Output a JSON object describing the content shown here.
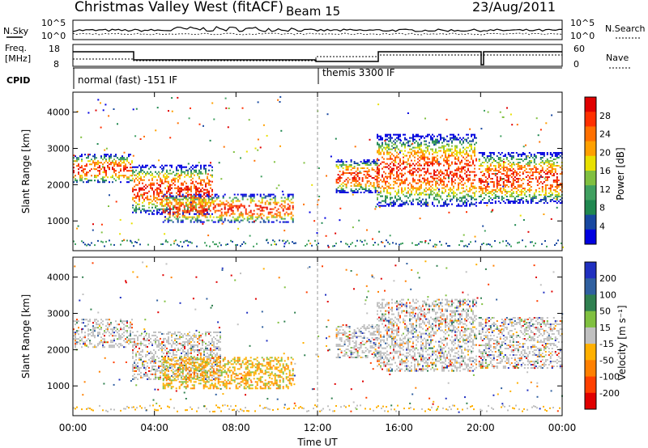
{
  "header": {
    "station": "Christmas Valley West (fitACF)",
    "beam": "Beam 15",
    "date": "23/Aug/2011"
  },
  "meta_panels": {
    "nsky_label": "N.Sky",
    "nsearch_label": "N.Search",
    "noise_ticks": [
      "10^5",
      "10^0"
    ],
    "freq_label": "Freq.",
    "freq_unit": "[MHz]",
    "freq_ticks": [
      "18",
      "8"
    ],
    "nave_label": "Nave",
    "nave_ticks": [
      "60",
      "0"
    ],
    "cpid_label": "CPID",
    "cpid_segments": [
      {
        "label": "normal (fast) -151 IF",
        "start_h": 0,
        "end_h": 12
      },
      {
        "label": "themis 3300 IF",
        "start_h": 12,
        "end_h": 24
      }
    ]
  },
  "chart_data": [
    {
      "type": "heatmap",
      "id": "power",
      "ylabel": "Slant Range [km]",
      "yticks": [
        1000,
        2000,
        3000,
        4000
      ],
      "ylim": [
        180,
        4550
      ],
      "xlim": [
        0,
        24
      ],
      "colorbar": {
        "label": "Power [dB]",
        "ticks": [
          "28",
          "24",
          "20",
          "16",
          "12",
          "8",
          "4"
        ],
        "colors": [
          "#e00000",
          "#ff3000",
          "#ff7000",
          "#ffa000",
          "#e8e000",
          "#80c040",
          "#40a060",
          "#208850",
          "#1848a0",
          "#0000e0"
        ]
      },
      "echo_regions": [
        {
          "t0": 0.0,
          "t1": 2.9,
          "r_top": 2850,
          "r_bot": 2050
        },
        {
          "t0": 2.9,
          "t1": 6.8,
          "r_top": 2550,
          "r_bot": 1200
        },
        {
          "t0": 4.4,
          "t1": 10.8,
          "r_top": 1750,
          "r_bot": 950
        },
        {
          "t0": 12.9,
          "t1": 15.0,
          "r_top": 2700,
          "r_bot": 1800
        },
        {
          "t0": 14.9,
          "t1": 19.8,
          "r_top": 3400,
          "r_bot": 1400
        },
        {
          "t0": 19.9,
          "t1": 24.0,
          "r_top": 2900,
          "r_bot": 1500
        }
      ]
    },
    {
      "type": "heatmap",
      "id": "velocity",
      "ylabel": "Slant Range [km]",
      "yticks": [
        1000,
        2000,
        3000,
        4000
      ],
      "ylim": [
        180,
        4550
      ],
      "xlim": [
        0,
        24
      ],
      "colorbar": {
        "label": "Velocity [m s⁻¹]",
        "ticks": [
          "200",
          "100",
          "50",
          "15",
          "-15",
          "-50",
          "-100",
          "-200"
        ],
        "colors": [
          "#2030c0",
          "#3060a0",
          "#308050",
          "#80c040",
          "#c0c0c0",
          "#ffb000",
          "#ff8000",
          "#ff4000",
          "#e00000"
        ]
      },
      "echo_regions": [
        {
          "t0": 0.0,
          "t1": 2.9,
          "r_top": 2850,
          "r_bot": 2050
        },
        {
          "t0": 2.9,
          "t1": 7.2,
          "r_top": 2500,
          "r_bot": 1200
        },
        {
          "t0": 4.4,
          "t1": 10.8,
          "r_top": 1800,
          "r_bot": 950
        },
        {
          "t0": 12.9,
          "t1": 15.0,
          "r_top": 2700,
          "r_bot": 1800
        },
        {
          "t0": 14.9,
          "t1": 19.8,
          "r_top": 3400,
          "r_bot": 1400
        },
        {
          "t0": 19.9,
          "t1": 24.0,
          "r_top": 2900,
          "r_bot": 1500
        }
      ]
    }
  ],
  "xaxis": {
    "label": "Time UT",
    "ticks": [
      "00:00",
      "04:00",
      "08:00",
      "12:00",
      "16:00",
      "20:00",
      "00:00"
    ]
  }
}
